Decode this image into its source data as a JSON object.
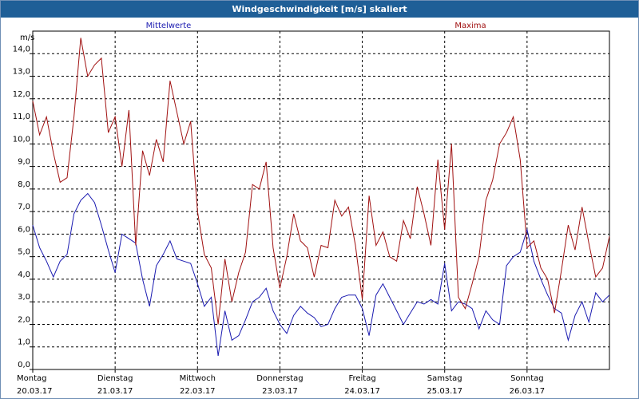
{
  "window": {
    "title": "Windgeschwindigkeit [m/s] skaliert"
  },
  "colors": {
    "mean": "#1a1ab0",
    "max": "#a01010",
    "title_bar": "#1f5f97"
  },
  "chart_data": {
    "type": "line",
    "title": "Windgeschwindigkeit [m/s] skaliert",
    "ylabel": "m/s",
    "ylim": [
      0,
      15
    ],
    "yticks": [
      "0,0",
      "1,0",
      "2,0",
      "3,0",
      "4,0",
      "5,0",
      "6,0",
      "7,0",
      "8,0",
      "9,0",
      "10,0",
      "11,0",
      "12,0",
      "13,0",
      "14,0"
    ],
    "grid": true,
    "legend_placement": "top",
    "xlim": [
      0,
      7
    ],
    "xticks": [
      {
        "day": "Montag",
        "date": "20.03.17"
      },
      {
        "day": "Dienstag",
        "date": "21.03.17"
      },
      {
        "day": "Mittwoch",
        "date": "22.03.17"
      },
      {
        "day": "Donnerstag",
        "date": "23.03.17"
      },
      {
        "day": "Freitag",
        "date": "24.03.17"
      },
      {
        "day": "Samstag",
        "date": "25.03.17"
      },
      {
        "day": "Sonntag",
        "date": "26.03.17"
      }
    ],
    "series": [
      {
        "name": "Mittelwerte",
        "x": [
          0,
          0.083,
          0.167,
          0.25,
          0.333,
          0.417,
          0.5,
          0.583,
          0.667,
          0.75,
          0.833,
          0.917,
          1.0,
          1.083,
          1.167,
          1.25,
          1.333,
          1.417,
          1.5,
          1.583,
          1.667,
          1.75,
          1.833,
          1.917,
          2.0,
          2.083,
          2.167,
          2.25,
          2.333,
          2.417,
          2.5,
          2.583,
          2.667,
          2.75,
          2.833,
          2.917,
          3.0,
          3.083,
          3.167,
          3.25,
          3.333,
          3.417,
          3.5,
          3.583,
          3.667,
          3.75,
          3.833,
          3.917,
          4.0,
          4.083,
          4.167,
          4.25,
          4.333,
          4.417,
          4.5,
          4.583,
          4.667,
          4.75,
          4.833,
          4.917,
          5.0,
          5.083,
          5.167,
          5.25,
          5.333,
          5.417,
          5.5,
          5.583,
          5.667,
          5.75,
          5.833,
          5.917,
          6.0,
          6.083,
          6.167,
          6.25,
          6.333,
          6.417,
          6.5,
          6.583,
          6.667,
          6.75,
          6.833,
          6.917,
          7.0
        ],
        "values": [
          6.4,
          5.4,
          4.8,
          4.1,
          4.8,
          5.1,
          6.9,
          7.5,
          7.8,
          7.4,
          6.4,
          5.3,
          4.3,
          6.0,
          5.8,
          5.6,
          4.0,
          2.8,
          4.6,
          5.1,
          5.7,
          4.9,
          4.8,
          4.7,
          3.8,
          2.8,
          3.2,
          0.6,
          2.6,
          1.3,
          1.5,
          2.2,
          3.0,
          3.2,
          3.6,
          2.6,
          2.0,
          1.6,
          2.4,
          2.8,
          2.5,
          2.3,
          1.9,
          2.0,
          2.7,
          3.2,
          3.3,
          3.3,
          2.7,
          1.5,
          3.3,
          3.8,
          3.2,
          2.6,
          2.0,
          2.5,
          3.0,
          2.9,
          3.1,
          2.9,
          4.7,
          2.6,
          3.0,
          2.9,
          2.7,
          1.8,
          2.6,
          2.2,
          2.0,
          4.6,
          5.0,
          5.2,
          6.2,
          4.8,
          4.0,
          3.3,
          2.7,
          2.5,
          1.3,
          2.4,
          3.0,
          2.1,
          3.4,
          3.0,
          3.3
        ]
      },
      {
        "name": "Maxima",
        "x": [
          0,
          0.083,
          0.167,
          0.25,
          0.333,
          0.417,
          0.5,
          0.583,
          0.667,
          0.75,
          0.833,
          0.917,
          1.0,
          1.083,
          1.167,
          1.25,
          1.333,
          1.417,
          1.5,
          1.583,
          1.667,
          1.75,
          1.833,
          1.917,
          2.0,
          2.083,
          2.167,
          2.25,
          2.333,
          2.417,
          2.5,
          2.583,
          2.667,
          2.75,
          2.833,
          2.917,
          3.0,
          3.083,
          3.167,
          3.25,
          3.333,
          3.417,
          3.5,
          3.583,
          3.667,
          3.75,
          3.833,
          3.917,
          4.0,
          4.083,
          4.167,
          4.25,
          4.333,
          4.417,
          4.5,
          4.583,
          4.667,
          4.75,
          4.833,
          4.917,
          5.0,
          5.083,
          5.167,
          5.25,
          5.333,
          5.417,
          5.5,
          5.583,
          5.667,
          5.75,
          5.833,
          5.917,
          6.0,
          6.083,
          6.167,
          6.25,
          6.333,
          6.417,
          6.5,
          6.583,
          6.667,
          6.75,
          6.833,
          6.917,
          7.0
        ],
        "values": [
          11.9,
          10.4,
          11.2,
          9.6,
          8.3,
          8.5,
          11.2,
          14.7,
          13.0,
          13.5,
          13.8,
          10.5,
          11.2,
          9.0,
          11.5,
          5.5,
          9.7,
          8.6,
          10.2,
          9.2,
          12.8,
          11.4,
          10.0,
          11.0,
          7.0,
          5.1,
          4.5,
          2.0,
          4.9,
          3.0,
          4.3,
          5.2,
          8.2,
          8.0,
          9.2,
          5.4,
          3.6,
          5.0,
          6.9,
          5.7,
          5.4,
          4.1,
          5.5,
          5.4,
          7.5,
          6.8,
          7.2,
          5.5,
          3.1,
          7.7,
          5.5,
          6.1,
          5.0,
          4.8,
          6.6,
          5.8,
          8.1,
          6.9,
          5.5,
          9.3,
          6.2,
          10.0,
          3.2,
          2.7,
          3.8,
          5.0,
          7.5,
          8.4,
          10.0,
          10.5,
          11.2,
          9.3,
          5.4,
          5.7,
          4.5,
          4.0,
          2.5,
          4.4,
          6.4,
          5.3,
          7.2,
          5.6,
          4.1,
          4.5,
          5.9
        ]
      }
    ]
  }
}
